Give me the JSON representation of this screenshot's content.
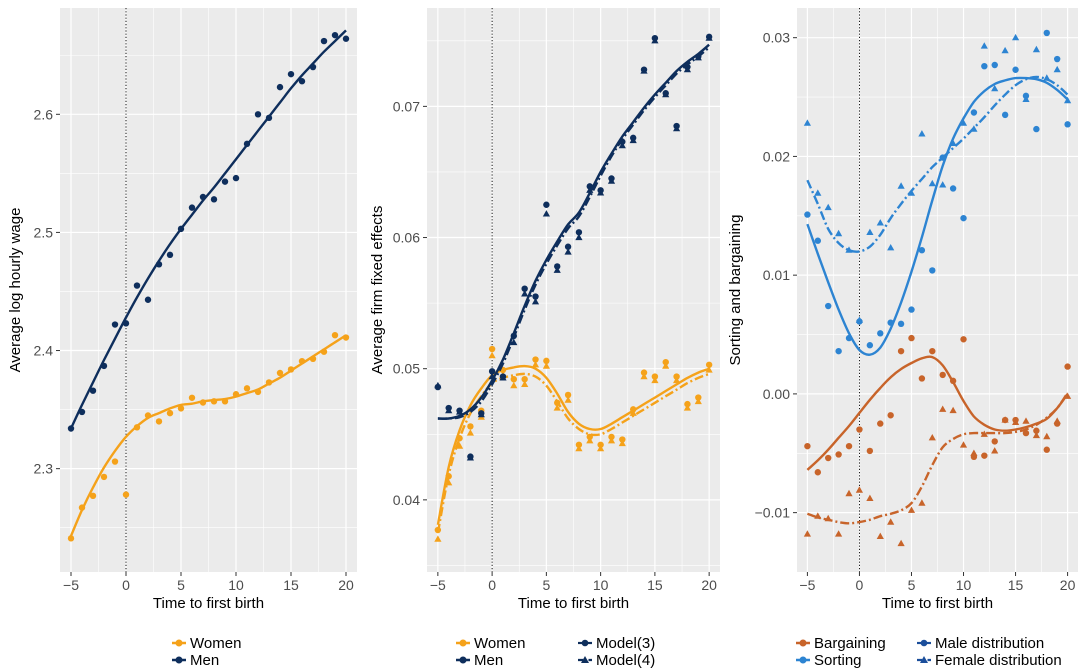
{
  "colors": {
    "women": "#F5A21A",
    "men": "#0E2E5C",
    "bargaining": "#C8642A",
    "sorting": "#2D84D2",
    "panel_bg": "#EBEBEB",
    "grid": "#FFFFFF"
  },
  "chart_data": [
    {
      "type": "scatter",
      "xlabel": "Time to first birth",
      "ylabel": "Average log hourly wage",
      "xlim": [
        -6,
        21
      ],
      "ylim": [
        2.2125,
        2.69
      ],
      "xticks": [
        -5,
        0,
        5,
        10,
        15,
        20
      ],
      "yticks": [
        2.3,
        2.4,
        2.5,
        2.6
      ],
      "tick_labels_x": [
        "−5",
        "0",
        "5",
        "10",
        "15",
        "20"
      ],
      "tick_labels_y": [
        "2.3",
        "2.4",
        "2.5",
        "2.6"
      ],
      "vline": 0,
      "grid": true,
      "legend": [
        "Women",
        "Men"
      ],
      "series": [
        {
          "name": "Women",
          "color_key": "women",
          "x": [
            -5,
            -4,
            -3,
            -2,
            -1,
            0,
            1,
            2,
            3,
            4,
            5,
            6,
            7,
            8,
            9,
            10,
            11,
            12,
            13,
            14,
            15,
            16,
            17,
            18,
            19,
            20
          ],
          "points": [
            2.241,
            2.267,
            2.277,
            2.293,
            2.306,
            2.278,
            2.335,
            2.345,
            2.34,
            2.347,
            2.351,
            2.36,
            2.356,
            2.357,
            2.357,
            2.363,
            2.368,
            2.365,
            2.373,
            2.381,
            2.384,
            2.391,
            2.393,
            2.399,
            2.413,
            2.411
          ],
          "trend": [
            2.243,
            2.265,
            2.284,
            2.301,
            2.315,
            2.327,
            2.336,
            2.343,
            2.347,
            2.351,
            2.354,
            2.355,
            2.357,
            2.358,
            2.359,
            2.361,
            2.364,
            2.367,
            2.372,
            2.377,
            2.383,
            2.389,
            2.395,
            2.401,
            2.407,
            2.413
          ],
          "marker": "circle"
        },
        {
          "name": "Men",
          "color_key": "men",
          "x": [
            -5,
            -4,
            -3,
            -2,
            -1,
            0,
            1,
            2,
            3,
            4,
            5,
            6,
            7,
            8,
            9,
            10,
            11,
            12,
            13,
            14,
            15,
            16,
            17,
            18,
            19,
            20
          ],
          "points": [
            2.334,
            2.348,
            2.366,
            2.387,
            2.422,
            2.423,
            2.455,
            2.443,
            2.473,
            2.481,
            2.503,
            2.521,
            2.53,
            2.528,
            2.543,
            2.546,
            2.575,
            2.6,
            2.597,
            2.623,
            2.634,
            2.628,
            2.64,
            2.662,
            2.667,
            2.664
          ],
          "trend": [
            2.334,
            2.354,
            2.373,
            2.392,
            2.41,
            2.428,
            2.445,
            2.461,
            2.476,
            2.49,
            2.503,
            2.515,
            2.527,
            2.538,
            2.55,
            2.562,
            2.574,
            2.586,
            2.598,
            2.61,
            2.622,
            2.633,
            2.643,
            2.653,
            2.662,
            2.671
          ],
          "marker": "circle"
        }
      ]
    },
    {
      "type": "scatter",
      "xlabel": "Time to first birth",
      "ylabel": "Average firm fixed effects",
      "xlim": [
        -6,
        21
      ],
      "ylim": [
        0.0345,
        0.0775
      ],
      "xticks": [
        -5,
        0,
        5,
        10,
        15,
        20
      ],
      "yticks": [
        0.04,
        0.05,
        0.06,
        0.07
      ],
      "tick_labels_x": [
        "−5",
        "0",
        "5",
        "10",
        "15",
        "20"
      ],
      "tick_labels_y": [
        "0.04",
        "0.05",
        "0.06",
        "0.07"
      ],
      "vline": 0,
      "grid": true,
      "legend": [
        "Women",
        "Men",
        "Model(3)",
        "Model(4)"
      ],
      "x": [
        -5,
        -4,
        -3,
        -2,
        -1,
        0,
        1,
        2,
        3,
        4,
        5,
        6,
        7,
        8,
        9,
        10,
        11,
        12,
        13,
        14,
        15,
        16,
        17,
        18,
        19,
        20
      ],
      "series": [
        {
          "name": "Women",
          "color_key": "women",
          "model3_points": [
            0.0377,
            0.0418,
            0.0447,
            0.0456,
            0.0468,
            0.0515,
            0.0499,
            0.0492,
            0.0492,
            0.0507,
            0.0506,
            0.0474,
            0.048,
            0.0442,
            0.0448,
            0.0442,
            0.0448,
            0.0446,
            0.0469,
            0.0497,
            0.0494,
            0.0505,
            0.0494,
            0.0473,
            0.0478,
            0.0503
          ],
          "model4_points": [
            0.037,
            0.0413,
            0.0441,
            0.0451,
            0.0463,
            0.051,
            0.0495,
            0.0487,
            0.0488,
            0.0503,
            0.0502,
            0.047,
            0.0476,
            0.0439,
            0.0445,
            0.0439,
            0.0445,
            0.0443,
            0.0466,
            0.0494,
            0.0491,
            0.0502,
            0.0491,
            0.047,
            0.0475,
            0.0499
          ],
          "model3_trend": [
            0.0381,
            0.0425,
            0.0453,
            0.0472,
            0.0485,
            0.0495,
            0.0499,
            0.0501,
            0.0502,
            0.05,
            0.0493,
            0.0481,
            0.0467,
            0.0458,
            0.0454,
            0.0454,
            0.0458,
            0.0463,
            0.0468,
            0.0473,
            0.0478,
            0.0483,
            0.0488,
            0.0493,
            0.0497,
            0.05
          ],
          "model4_trend": [
            0.0375,
            0.0419,
            0.0447,
            0.0466,
            0.0479,
            0.0489,
            0.0493,
            0.0495,
            0.0496,
            0.0494,
            0.0487,
            0.0475,
            0.0462,
            0.0454,
            0.045,
            0.045,
            0.0454,
            0.0459,
            0.0464,
            0.0469,
            0.0474,
            0.0479,
            0.0484,
            0.0489,
            0.0493,
            0.0496
          ]
        },
        {
          "name": "Men",
          "color_key": "men",
          "model3_points": [
            0.0486,
            0.047,
            0.0468,
            0.0433,
            0.0466,
            0.0498,
            0.0494,
            0.0525,
            0.0561,
            0.0555,
            0.0625,
            0.0578,
            0.0593,
            0.0604,
            0.0639,
            0.0636,
            0.0645,
            0.0673,
            0.0676,
            0.0728,
            0.0752,
            0.071,
            0.0685,
            0.073,
            0.0738,
            0.0753
          ],
          "model4_points": [
            0.0487,
            0.0468,
            0.0467,
            0.0432,
            0.0465,
            0.0494,
            0.0493,
            0.052,
            0.0557,
            0.0551,
            0.0618,
            0.0575,
            0.0589,
            0.06,
            0.0636,
            0.0634,
            0.0643,
            0.067,
            0.0674,
            0.0727,
            0.075,
            0.0709,
            0.0683,
            0.0728,
            0.0737,
            0.0752
          ],
          "model3_trend": [
            0.0462,
            0.0462,
            0.0464,
            0.0469,
            0.0478,
            0.0491,
            0.0507,
            0.0527,
            0.0548,
            0.0567,
            0.0583,
            0.0597,
            0.061,
            0.0619,
            0.0634,
            0.065,
            0.0664,
            0.0677,
            0.0688,
            0.0699,
            0.0709,
            0.0718,
            0.0727,
            0.0734,
            0.074,
            0.0747
          ],
          "model4_trend": [
            0.0462,
            0.0462,
            0.0463,
            0.0467,
            0.0475,
            0.0488,
            0.0504,
            0.0524,
            0.0545,
            0.0564,
            0.058,
            0.0594,
            0.0607,
            0.0616,
            0.0631,
            0.0647,
            0.0662,
            0.0675,
            0.0686,
            0.0697,
            0.0707,
            0.0716,
            0.0725,
            0.0732,
            0.0738,
            0.0745
          ]
        }
      ]
    },
    {
      "type": "scatter",
      "xlabel": "Time to first birth",
      "ylabel": "Sorting and bargaining",
      "xlim": [
        -6,
        21
      ],
      "ylim": [
        -0.015,
        0.0325
      ],
      "xticks": [
        -5,
        0,
        5,
        10,
        15,
        20
      ],
      "yticks": [
        -0.01,
        0.0,
        0.01,
        0.02,
        0.03
      ],
      "tick_labels_x": [
        "−5",
        "0",
        "5",
        "10",
        "15",
        "20"
      ],
      "tick_labels_y": [
        "−0.01",
        "0.00",
        "0.01",
        "0.02",
        "0.03"
      ],
      "vline": 0,
      "grid": true,
      "legend": [
        "Bargaining",
        "Sorting",
        "Male distribution",
        "Female distribution"
      ],
      "x": [
        -5,
        -4,
        -3,
        -2,
        -1,
        0,
        1,
        2,
        3,
        4,
        5,
        6,
        7,
        8,
        9,
        10,
        11,
        12,
        13,
        14,
        15,
        16,
        17,
        18,
        19,
        20
      ],
      "series": [
        {
          "name": "Bargaining",
          "color_key": "bargaining",
          "male_points": [
            -0.0044,
            -0.0066,
            -0.0054,
            -0.0051,
            -0.0044,
            -0.003,
            -0.0048,
            -0.0025,
            -0.0018,
            0.0036,
            0.0047,
            0.0013,
            0.0036,
            0.0016,
            0.0011,
            0.0046,
            -0.0053,
            -0.0052,
            -0.004,
            -0.0022,
            -0.0022,
            -0.0033,
            -0.0031,
            -0.0047,
            -0.0025,
            0.0023
          ],
          "female_points": [
            -0.0118,
            -0.0103,
            -0.0105,
            -0.0118,
            -0.0084,
            -0.0081,
            -0.0088,
            -0.012,
            -0.0108,
            -0.0126,
            -0.0098,
            -0.0092,
            -0.0037,
            -0.0013,
            -0.0014,
            -0.0043,
            -0.005,
            -0.0034,
            -0.0048,
            -0.0022,
            -0.0024,
            -0.0023,
            -0.0035,
            -0.0036,
            -0.0023,
            -0.0002
          ],
          "male_trend": [
            -0.0064,
            -0.0056,
            -0.0047,
            -0.0037,
            -0.0027,
            -0.0016,
            -0.0005,
            0.0005,
            0.0014,
            0.0021,
            0.0026,
            0.003,
            0.0031,
            0.0024,
            0.001,
            -0.0006,
            -0.0019,
            -0.0026,
            -0.003,
            -0.0031,
            -0.003,
            -0.0028,
            -0.0025,
            -0.0021,
            -0.0012,
            0.0
          ],
          "female_trend": [
            -0.0101,
            -0.0104,
            -0.0106,
            -0.0108,
            -0.0109,
            -0.0108,
            -0.0106,
            -0.0103,
            -0.0101,
            -0.0098,
            -0.0092,
            -0.0078,
            -0.006,
            -0.0045,
            -0.0038,
            -0.0034,
            -0.0033,
            -0.0033,
            -0.0033,
            -0.0033,
            -0.0032,
            -0.003,
            -0.0026,
            -0.002,
            -0.0012,
            0.0001
          ]
        },
        {
          "name": "Sorting",
          "color_key": "sorting",
          "male_points": [
            0.0151,
            0.0129,
            0.0074,
            0.0036,
            0.0047,
            0.0061,
            0.0041,
            0.0051,
            0.006,
            0.0059,
            0.0071,
            0.0121,
            0.0104,
            0.0199,
            0.0173,
            0.0148,
            0.0237,
            0.0276,
            0.0277,
            0.0235,
            0.0273,
            0.0251,
            0.0223,
            0.0304,
            0.0282,
            0.0227
          ],
          "female_points": [
            0.0228,
            0.0169,
            0.0157,
            0.0135,
            0.0121,
            0.0062,
            0.0136,
            0.0144,
            0.0123,
            0.0175,
            0.0169,
            0.0219,
            0.0177,
            0.0176,
            0.0211,
            0.0228,
            0.0223,
            0.0293,
            0.0257,
            0.0289,
            0.03,
            0.0248,
            0.029,
            0.0266,
            0.0273,
            0.0247
          ],
          "male_trend": [
            0.0143,
            0.0118,
            0.0094,
            0.0071,
            0.0051,
            0.0037,
            0.0033,
            0.0039,
            0.0055,
            0.0077,
            0.0103,
            0.0132,
            0.0163,
            0.0192,
            0.0215,
            0.0232,
            0.0246,
            0.0255,
            0.0261,
            0.0264,
            0.0266,
            0.0266,
            0.0265,
            0.0262,
            0.0256,
            0.0248
          ],
          "female_trend": [
            0.018,
            0.016,
            0.0139,
            0.0127,
            0.0121,
            0.012,
            0.0124,
            0.0134,
            0.0148,
            0.016,
            0.0171,
            0.0181,
            0.0191,
            0.0199,
            0.0207,
            0.0215,
            0.0224,
            0.0233,
            0.0243,
            0.0252,
            0.026,
            0.0265,
            0.0267,
            0.0265,
            0.026,
            0.0252
          ]
        }
      ]
    }
  ]
}
